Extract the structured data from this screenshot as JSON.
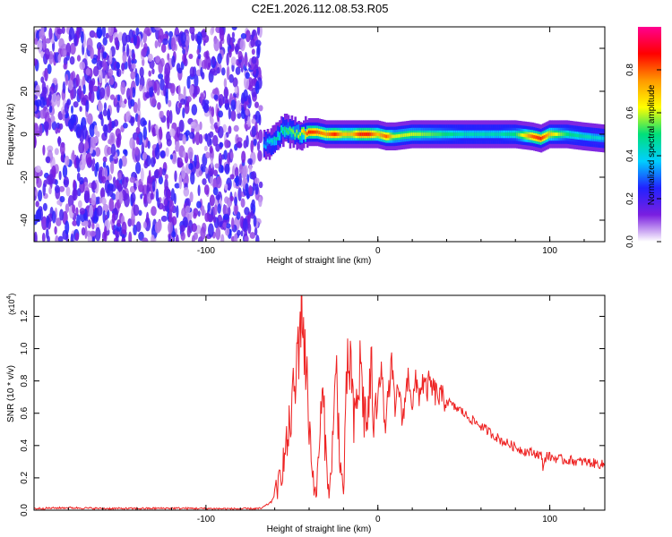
{
  "title": "C2E1.2026.112.08.53.R05",
  "chart_data": [
    {
      "type": "heatmap",
      "xlabel": "Height of straight line (km)",
      "ylabel": "Frequency (Hz)",
      "xlim": [
        -200,
        132
      ],
      "ylim": [
        -50,
        50
      ],
      "x_ticks": [
        -100,
        0,
        100
      ],
      "x_tick_labels": [
        "-100",
        "0",
        "100"
      ],
      "y_ticks": [
        -40,
        -20,
        0,
        20,
        40
      ],
      "y_tick_labels": [
        "-40",
        "-20",
        "0",
        "20",
        "40"
      ],
      "colorbar": {
        "label": "Normalized spectral amplitude",
        "range": [
          0,
          1
        ],
        "ticks": [
          0.0,
          0.2,
          0.4,
          0.6,
          0.8
        ],
        "tick_labels": [
          "0.0",
          "0.2",
          "0.4",
          "0.6",
          "0.8"
        ],
        "colors": [
          "#ffffff",
          "#7a1fe0",
          "#2222ff",
          "#00cfff",
          "#00e07a",
          "#ffff00",
          "#ff9900",
          "#ff0000",
          "#ff0090"
        ]
      },
      "noise_region": {
        "x": [
          -200,
          -68
        ],
        "amplitude": 0.15
      },
      "ridge": {
        "x": [
          -66,
          -60,
          -55,
          -50,
          -45,
          -40,
          -35,
          -30,
          -25,
          -20,
          -15,
          -10,
          -5,
          0,
          5,
          10,
          20,
          30,
          40,
          50,
          60,
          70,
          80,
          90,
          95,
          100,
          110,
          120,
          132
        ],
        "frequency": [
          -5,
          -3,
          2,
          1,
          0,
          1,
          1,
          0,
          0,
          0,
          0,
          0,
          0,
          0,
          -1,
          -1,
          0,
          0,
          0,
          0,
          0,
          0,
          0,
          -1,
          -2,
          0,
          0,
          -1,
          -2
        ],
        "amplitude": [
          0.35,
          0.45,
          0.5,
          0.55,
          0.6,
          0.85,
          0.8,
          0.75,
          0.85,
          0.7,
          0.7,
          0.85,
          0.85,
          0.7,
          0.8,
          0.6,
          0.6,
          0.55,
          0.5,
          0.45,
          0.45,
          0.45,
          0.5,
          0.8,
          0.85,
          0.7,
          0.5,
          0.45,
          0.4
        ]
      }
    },
    {
      "type": "line",
      "xlabel": "Height of straight line (km)",
      "ylabel": "SNR (10 * v/v)",
      "y_multiplier": "(x10",
      "y_multiplier_exp": "4",
      "xlim": [
        -200,
        132
      ],
      "ylim": [
        0,
        1.33
      ],
      "x_ticks": [
        -100,
        0,
        100
      ],
      "x_tick_labels": [
        "-100",
        "0",
        "100"
      ],
      "y_ticks": [
        0.0,
        0.2,
        0.4,
        0.6,
        0.8,
        1.0,
        1.2
      ],
      "y_tick_labels": [
        "0.0",
        "0.2",
        "0.4",
        "0.6",
        "0.8",
        "1.0",
        "1.2"
      ],
      "color": "#ee2222",
      "series": [
        {
          "x": [
            -200,
            -180,
            -160,
            -140,
            -120,
            -100,
            -80,
            -68,
            -62,
            -58,
            -55,
            -52,
            -50,
            -48,
            -46,
            -44,
            -42,
            -40,
            -38,
            -36,
            -34,
            -32,
            -30,
            -28,
            -26,
            -24,
            -22,
            -20,
            -18,
            -16,
            -14,
            -12,
            -10,
            -8,
            -6,
            -4,
            -2,
            0,
            2,
            4,
            6,
            8,
            10,
            12,
            14,
            16,
            18,
            20,
            22,
            24,
            26,
            28,
            30,
            33,
            36,
            40,
            44,
            48,
            52,
            56,
            60,
            64,
            68,
            72,
            76,
            80,
            84,
            88,
            92,
            95,
            96,
            98,
            100,
            104,
            108,
            112,
            116,
            120,
            126,
            132
          ],
          "y": [
            0.01,
            0.015,
            0.01,
            0.01,
            0.012,
            0.01,
            0.008,
            0.01,
            0.05,
            0.15,
            0.3,
            0.45,
            0.65,
            0.75,
            1.1,
            1.3,
            0.9,
            0.55,
            0.25,
            0.05,
            0.45,
            0.7,
            0.3,
            0.1,
            0.5,
            0.85,
            0.3,
            0.1,
            0.8,
            0.95,
            0.5,
            0.7,
            0.9,
            0.6,
            0.55,
            0.85,
            0.5,
            0.78,
            0.9,
            0.5,
            0.7,
            0.9,
            0.6,
            0.8,
            0.55,
            0.7,
            0.85,
            0.65,
            0.78,
            0.72,
            0.8,
            0.74,
            0.78,
            0.73,
            0.7,
            0.68,
            0.64,
            0.62,
            0.58,
            0.55,
            0.52,
            0.49,
            0.46,
            0.43,
            0.41,
            0.39,
            0.37,
            0.36,
            0.35,
            0.34,
            0.27,
            0.34,
            0.33,
            0.32,
            0.31,
            0.31,
            0.3,
            0.3,
            0.29,
            0.28
          ]
        }
      ]
    }
  ]
}
